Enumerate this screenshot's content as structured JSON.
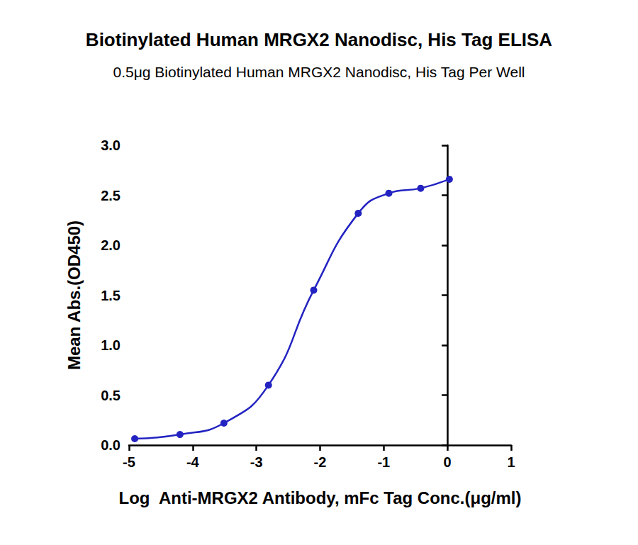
{
  "chart_data": {
    "type": "line",
    "title": "Biotinylated Human MRGX2 Nanodisc, His Tag ELISA",
    "subtitle": "0.5μg Biotinylated Human MRGX2 Nanodisc, His Tag Per Well",
    "x_label": "Log  Anti-MRGX2 Antibody, mFc Tag Conc.(μg/ml)",
    "y_label": "Mean Abs.(OD450)",
    "x": [
      -4.91,
      -4.2,
      -3.51,
      -2.81,
      -2.1,
      -1.4,
      -0.92,
      -0.42,
      0.03
    ],
    "values": [
      0.064,
      0.106,
      0.22,
      0.6,
      1.55,
      2.32,
      2.52,
      2.57,
      2.66
    ],
    "color": "#2323c2",
    "marker": "circle",
    "line_style": "solid",
    "xlim": [
      -5,
      1
    ],
    "xticks": [
      -5,
      -4,
      -3,
      -2,
      -1,
      0,
      1
    ],
    "ylim": [
      0,
      3
    ],
    "yticks": [
      {
        "value": 0,
        "label": "0.0"
      },
      {
        "value": 0.5,
        "label": "0.5"
      },
      {
        "value": 1,
        "label": "1.0"
      },
      {
        "value": 1.5,
        "label": "1.5"
      },
      {
        "value": 2,
        "label": "2.0"
      },
      {
        "value": 2.5,
        "label": "2.5"
      },
      {
        "value": 3,
        "label": "3.0"
      }
    ],
    "grid": false
  }
}
